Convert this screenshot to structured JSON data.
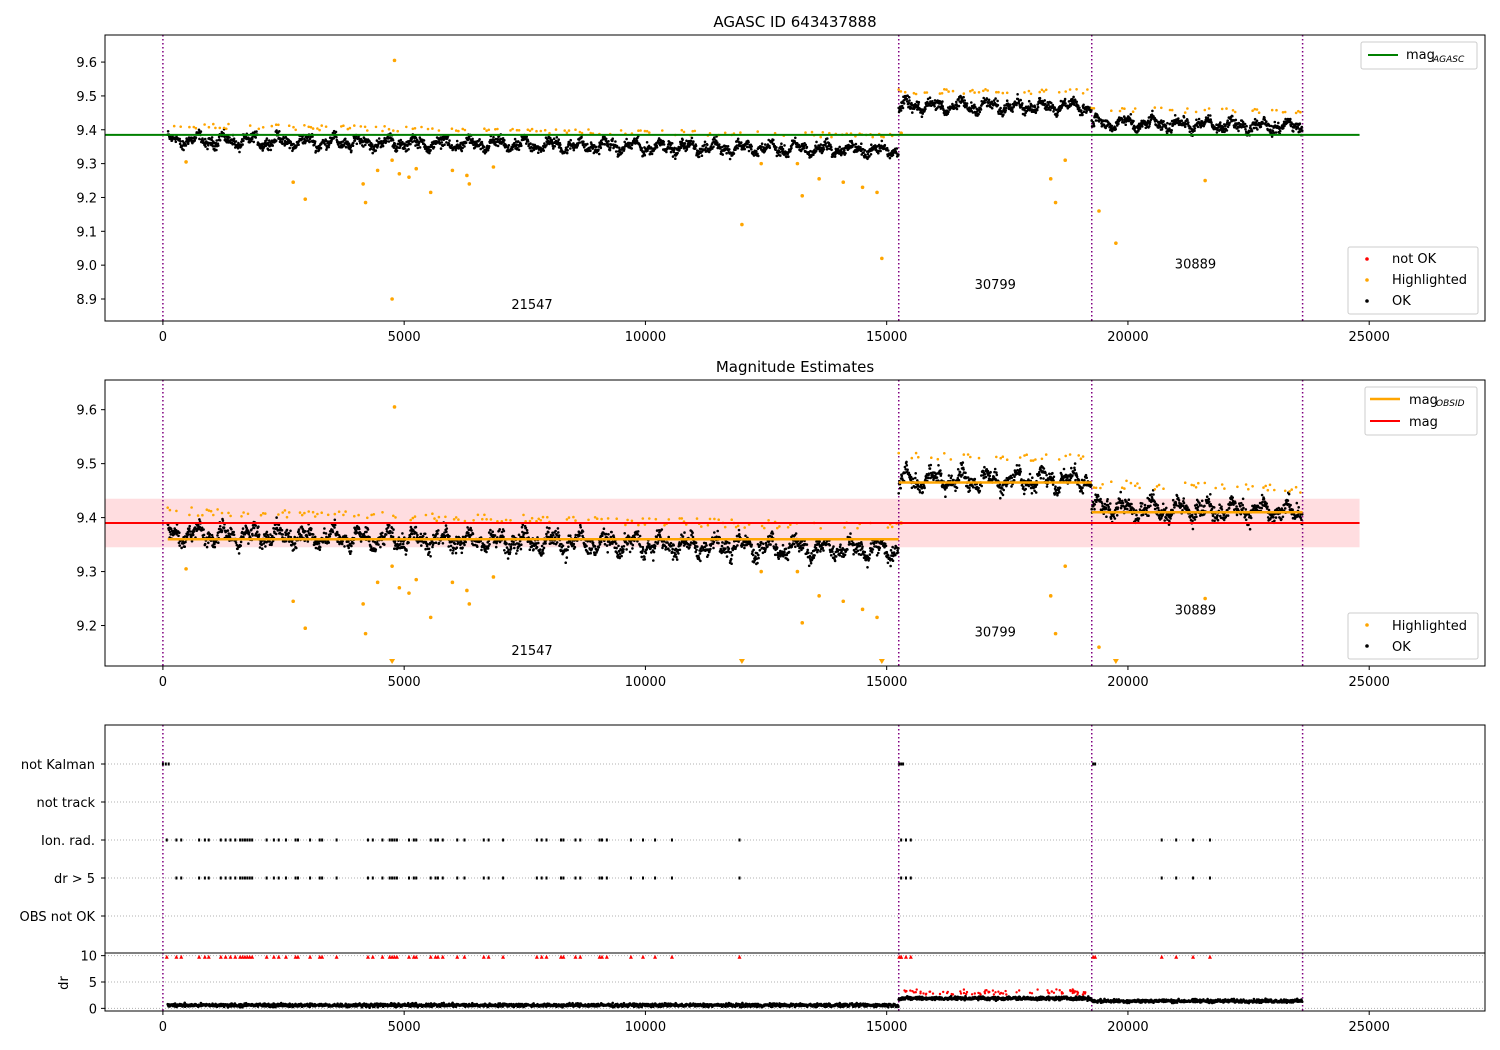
{
  "chart_data": [
    {
      "type": "scatter",
      "title": "AGASC ID 643437888",
      "x_ticks": [
        "0",
        "5000",
        "10000",
        "15000",
        "20000",
        "25000"
      ],
      "y_ticks": [
        "8.9",
        "9.0",
        "9.1",
        "9.2",
        "9.3",
        "9.4",
        "9.5",
        "9.6"
      ],
      "xlim": [
        -1200,
        27400
      ],
      "ylim": [
        8.835,
        9.68
      ],
      "obsid_boundaries": [
        0,
        15250,
        19250,
        23620
      ],
      "obsid_labels": [
        {
          "text": "21547",
          "x": 7650,
          "y": 8.87
        },
        {
          "text": "30799",
          "x": 17250,
          "y": 8.93
        },
        {
          "text": "30889",
          "x": 21400,
          "y": 8.99
        }
      ],
      "hlines": [
        {
          "name": "mag_AGASC",
          "y": 9.385,
          "x": [
            -1200,
            24800
          ],
          "color": "#008000"
        }
      ],
      "legend_top": [
        {
          "label": "mag",
          "sub": "AGASC",
          "color": "#008000"
        }
      ],
      "legend_bottom": [
        {
          "label": "not OK",
          "color": "#ff0000"
        },
        {
          "label": "Highlighted",
          "color": "#ffa500"
        },
        {
          "label": "OK",
          "color": "#000000"
        }
      ],
      "segments": [
        {
          "x": [
            100,
            15250
          ],
          "y0": 9.37,
          "y1": 9.34
        },
        {
          "x": [
            15250,
            19250
          ],
          "y0": 9.47,
          "y1": 9.47
        },
        {
          "x": [
            19250,
            23620
          ],
          "y0": 9.42,
          "y1": 9.41
        }
      ],
      "highlighted_points": [
        [
          480,
          9.305
        ],
        [
          2700,
          9.245
        ],
        [
          2950,
          9.195
        ],
        [
          4150,
          9.24
        ],
        [
          4200,
          9.185
        ],
        [
          4450,
          9.28
        ],
        [
          4750,
          9.31
        ],
        [
          4800,
          9.605
        ],
        [
          4750,
          8.9
        ],
        [
          4900,
          9.27
        ],
        [
          5100,
          9.26
        ],
        [
          5250,
          9.285
        ],
        [
          5550,
          9.215
        ],
        [
          6000,
          9.28
        ],
        [
          6300,
          9.265
        ],
        [
          6350,
          9.24
        ],
        [
          6850,
          9.29
        ],
        [
          12000,
          9.12
        ],
        [
          12400,
          9.3
        ],
        [
          13150,
          9.3
        ],
        [
          13250,
          9.205
        ],
        [
          13600,
          9.255
        ],
        [
          14100,
          9.245
        ],
        [
          14500,
          9.23
        ],
        [
          14800,
          9.215
        ],
        [
          14900,
          9.02
        ],
        [
          15300,
          9.39
        ],
        [
          18500,
          9.185
        ],
        [
          18400,
          9.255
        ],
        [
          18700,
          9.31
        ],
        [
          19400,
          9.16
        ],
        [
          19750,
          9.065
        ],
        [
          21600,
          9.25
        ]
      ]
    },
    {
      "type": "scatter",
      "title": "Magnitude Estimates",
      "x_ticks": [
        "0",
        "5000",
        "10000",
        "15000",
        "20000",
        "25000"
      ],
      "y_ticks": [
        "9.2",
        "9.3",
        "9.4",
        "9.5",
        "9.6"
      ],
      "xlim": [
        -1200,
        27400
      ],
      "ylim": [
        9.125,
        9.655
      ],
      "obsid_boundaries": [
        0,
        15250,
        19250,
        23620
      ],
      "obsid_labels": [
        {
          "text": "21547",
          "x": 7650,
          "y": 9.145
        },
        {
          "text": "30799",
          "x": 17250,
          "y": 9.18
        },
        {
          "text": "30889",
          "x": 21400,
          "y": 9.22
        }
      ],
      "band": {
        "y": [
          9.345,
          9.435
        ],
        "x": [
          -1200,
          24800
        ],
        "color": "#ffdde0"
      },
      "hlines": [
        {
          "name": "mag",
          "y": 9.39,
          "x": [
            -1200,
            24800
          ],
          "color": "#ff0000"
        }
      ],
      "obsid_mags": [
        {
          "x": [
            100,
            15250
          ],
          "y": 9.36
        },
        {
          "x": [
            15250,
            19250
          ],
          "y": 9.465
        },
        {
          "x": [
            19250,
            23620
          ],
          "y": 9.41
        }
      ],
      "legend_top": [
        {
          "label": "mag",
          "sub": "OBSID",
          "color": "#ffa500"
        },
        {
          "label": "mag",
          "sub": "",
          "color": "#ff0000"
        }
      ],
      "legend_bottom": [
        {
          "label": "Highlighted",
          "color": "#ffa500"
        },
        {
          "label": "OK",
          "color": "#000000"
        }
      ],
      "segments": [
        {
          "x": [
            100,
            15250
          ],
          "y0": 9.37,
          "y1": 9.34
        },
        {
          "x": [
            15250,
            19250
          ],
          "y0": 9.47,
          "y1": 9.47
        },
        {
          "x": [
            19250,
            23620
          ],
          "y0": 9.42,
          "y1": 9.41
        }
      ],
      "highlighted_points": [
        [
          480,
          9.305
        ],
        [
          2700,
          9.245
        ],
        [
          2950,
          9.195
        ],
        [
          4150,
          9.24
        ],
        [
          4200,
          9.185
        ],
        [
          4450,
          9.28
        ],
        [
          4750,
          9.31
        ],
        [
          4800,
          9.605
        ],
        [
          4900,
          9.27
        ],
        [
          5100,
          9.26
        ],
        [
          5250,
          9.285
        ],
        [
          5550,
          9.215
        ],
        [
          6000,
          9.28
        ],
        [
          6300,
          9.265
        ],
        [
          6350,
          9.24
        ],
        [
          6850,
          9.29
        ],
        [
          12400,
          9.3
        ],
        [
          13150,
          9.3
        ],
        [
          13250,
          9.205
        ],
        [
          13600,
          9.255
        ],
        [
          14100,
          9.245
        ],
        [
          14500,
          9.23
        ],
        [
          14800,
          9.215
        ],
        [
          15300,
          9.39
        ],
        [
          18500,
          9.185
        ],
        [
          18400,
          9.255
        ],
        [
          18700,
          9.31
        ],
        [
          19400,
          9.16
        ],
        [
          21600,
          9.25
        ]
      ],
      "offscale_markers": [
        4750,
        12000,
        14900,
        19750
      ]
    },
    {
      "type": "scatter",
      "title": "",
      "x_ticks": [
        "0",
        "5000",
        "10000",
        "15000",
        "20000",
        "25000"
      ],
      "xlim": [
        -1200,
        27400
      ],
      "obsid_boundaries": [
        0,
        15250,
        19250,
        23620
      ],
      "flag_rows": [
        "not Kalman",
        "not track",
        "Ion. rad.",
        "dr > 5",
        "OBS not OK"
      ],
      "flag_points": {
        "not Kalman": [
          0,
          60,
          120,
          15260,
          15300,
          15340,
          19280,
          19320
        ],
        "not track": [],
        "Ion. rad.": [
          80,
          280,
          380,
          750,
          870,
          950,
          1200,
          1300,
          1400,
          1500,
          1600,
          1650,
          1700,
          1750,
          1800,
          1850,
          2150,
          2300,
          2400,
          2550,
          2750,
          2800,
          3050,
          3250,
          3300,
          3600,
          4250,
          4350,
          4550,
          4700,
          4750,
          4800,
          4850,
          5100,
          5200,
          5250,
          5550,
          5650,
          5700,
          5800,
          6100,
          6250,
          6650,
          6750,
          7050,
          7750,
          7850,
          7950,
          8250,
          8300,
          8550,
          8650,
          9050,
          9100,
          9200,
          9700,
          9950,
          10200,
          10550,
          11950,
          15300,
          15400,
          15500,
          20700,
          21000,
          21350,
          21700
        ]
      },
      "dr_ticks": [
        "0",
        "5",
        "10"
      ],
      "dr_ylim": [
        -0.5,
        10.5
      ]
    }
  ]
}
